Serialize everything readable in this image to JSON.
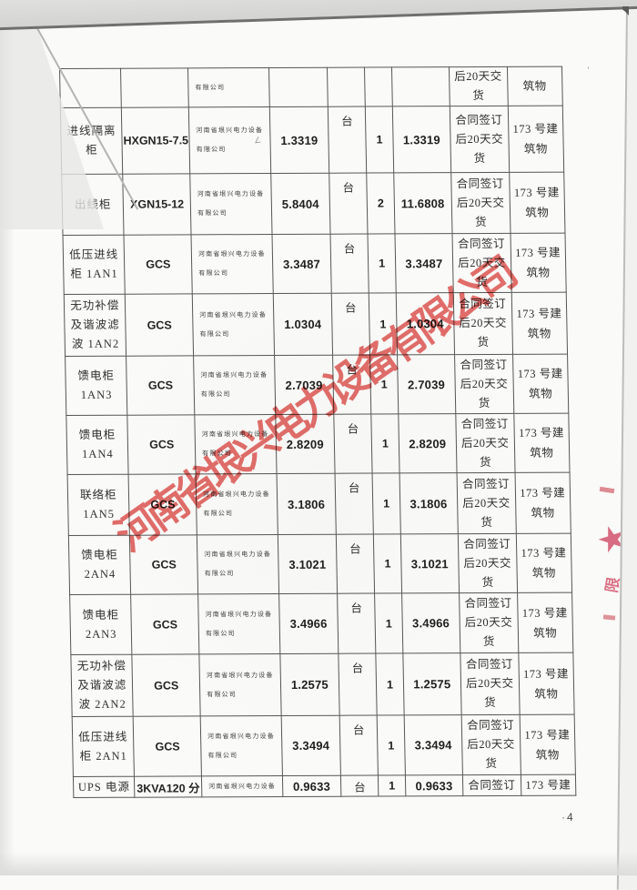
{
  "watermark": {
    "text": "河南省垠兴电力设备有限公司",
    "color": "#e04f4b"
  },
  "seal": {
    "star_icon": "★",
    "partial_char": "限"
  },
  "marks": {
    "page_number": "4",
    "tick": "'",
    "stray": "∠"
  },
  "table": {
    "rows": [
      {
        "name": "",
        "model": "",
        "supplier": "有限公司",
        "unit_price": "",
        "unit": "",
        "qty": "",
        "total": "",
        "delivery": "后20天交\n货",
        "building": "筑物"
      },
      {
        "name": "进线隔离\n柜",
        "model": "HXGN15-7.5",
        "supplier": "河南省垠兴电力设备\n有限公司",
        "unit_price": "1.3319",
        "unit": "台",
        "qty": "1",
        "total": "1.3319",
        "delivery": "合同签订\n后20天交\n货",
        "building": "173 号建\n筑物"
      },
      {
        "name": "出线柜",
        "model": "XGN15-12",
        "supplier": "河南省垠兴电力设备\n有限公司",
        "unit_price": "5.8404",
        "unit": "台",
        "qty": "2",
        "total": "11.6808",
        "delivery": "合同签订\n后20天交\n货",
        "building": "173 号建\n筑物"
      },
      {
        "name": "低压进线\n柜 1AN1",
        "model": "GCS",
        "supplier": "河南省垠兴电力设备\n有限公司",
        "unit_price": "3.3487",
        "unit": "台",
        "qty": "1",
        "total": "3.3487",
        "delivery": "合同签订\n后20天交\n货",
        "building": "173 号建\n筑物"
      },
      {
        "name": "无功补偿\n及谐波滤\n波 1AN2",
        "model": "GCS",
        "supplier": "河南省垠兴电力设备\n有限公司",
        "unit_price": "1.0304",
        "unit": "台",
        "qty": "1",
        "total": "1.0304",
        "delivery": "合同签订\n后20天交\n货",
        "building": "173 号建\n筑物"
      },
      {
        "name": "馈电柜\n1AN3",
        "model": "GCS",
        "supplier": "河南省垠兴电力设备\n有限公司",
        "unit_price": "2.7039",
        "unit": "台",
        "qty": "1",
        "total": "2.7039",
        "delivery": "合同签订\n后20天交\n货",
        "building": "173 号建\n筑物"
      },
      {
        "name": "馈电柜\n1AN4",
        "model": "GCS",
        "supplier": "河南省垠兴电力设备\n有限公司",
        "unit_price": "2.8209",
        "unit": "台",
        "qty": "1",
        "total": "2.8209",
        "delivery": "合同签订\n后20天交\n货",
        "building": "173 号建\n筑物"
      },
      {
        "name": "联络柜\n1AN5",
        "model": "GCS",
        "supplier": "河南省垠兴电力设备\n有限公司",
        "unit_price": "3.1806",
        "unit": "台",
        "qty": "1",
        "total": "3.1806",
        "delivery": "合同签订\n后20天交\n货",
        "building": "173 号建\n筑物"
      },
      {
        "name": "馈电柜\n2AN4",
        "model": "GCS",
        "supplier": "河南省垠兴电力设备\n有限公司",
        "unit_price": "3.1021",
        "unit": "台",
        "qty": "1",
        "total": "3.1021",
        "delivery": "合同签订\n后20天交\n货",
        "building": "173 号建\n筑物"
      },
      {
        "name": "馈电柜\n2AN3",
        "model": "GCS",
        "supplier": "河南省垠兴电力设备\n有限公司",
        "unit_price": "3.4966",
        "unit": "台",
        "qty": "1",
        "total": "3.4966",
        "delivery": "合同签订\n后20天交\n货",
        "building": "173 号建\n筑物"
      },
      {
        "name": "无功补偿\n及谐波滤\n波 2AN2",
        "model": "GCS",
        "supplier": "河南省垠兴电力设备\n有限公司",
        "unit_price": "1.2575",
        "unit": "台",
        "qty": "1",
        "total": "1.2575",
        "delivery": "合同签订\n后20天交\n货",
        "building": "173 号建\n筑物"
      },
      {
        "name": "低压进线\n柜 2AN1",
        "model": "GCS",
        "supplier": "河南省垠兴电力设备\n有限公司",
        "unit_price": "3.3494",
        "unit": "台",
        "qty": "1",
        "total": "3.3494",
        "delivery": "合同签订\n后20天交\n货",
        "building": "173 号建\n筑物"
      },
      {
        "name": "UPS 电源",
        "model": "3KVA120 分",
        "supplier": "河南省垠兴电力设备",
        "unit_price": "0.9633",
        "unit": "台",
        "qty": "1",
        "total": "0.9633",
        "delivery": "合同签订",
        "building": "173 号建"
      }
    ]
  }
}
